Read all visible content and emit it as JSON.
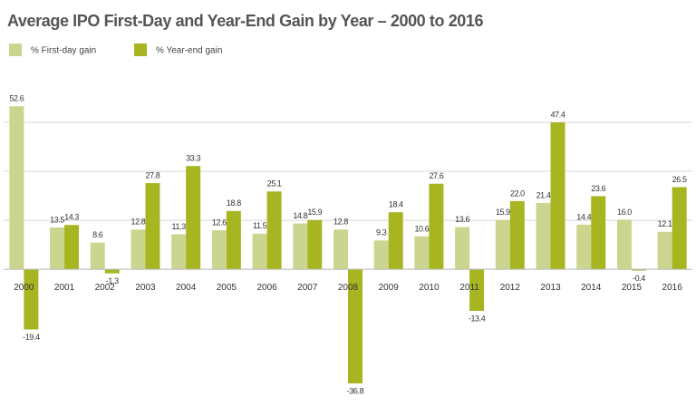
{
  "chart_data": {
    "type": "bar",
    "title": "Average IPO First-Day and Year-End Gain by Year – 2000 to 2016",
    "categories": [
      "2000",
      "2001",
      "2002",
      "2003",
      "2004",
      "2005",
      "2006",
      "2007",
      "2008",
      "2009",
      "2010",
      "2011",
      "2012",
      "2013",
      "2014",
      "2015",
      "2016"
    ],
    "series": [
      {
        "name": "% First-day gain",
        "color": "#cbd58f",
        "values": [
          52.6,
          13.5,
          8.6,
          12.8,
          11.3,
          12.6,
          11.5,
          14.8,
          12.8,
          9.3,
          10.6,
          13.6,
          15.9,
          21.4,
          14.4,
          16.0,
          12.1
        ],
        "value_labels": [
          "52.6",
          "13.5",
          "8.6",
          "12.8",
          "11.3",
          "12.6",
          "11.5",
          "14.8",
          "12.8",
          "9.3",
          "10.6",
          "13.6",
          "15.9",
          "21.4",
          "14.4",
          "16.0",
          "12.1"
        ]
      },
      {
        "name": "% Year-end gain",
        "color": "#a6b520",
        "values": [
          -19.4,
          14.3,
          -1.3,
          27.8,
          33.3,
          18.8,
          25.1,
          15.9,
          -36.8,
          18.4,
          27.6,
          -13.4,
          22.0,
          47.4,
          23.6,
          -0.4,
          26.5
        ],
        "value_labels": [
          "-19.4",
          "14.3",
          "-1.3",
          "27.8",
          "33.3",
          "18.8",
          "25.1",
          "15.9",
          "-36.8",
          "18.4",
          "27.6",
          "-13.4",
          "22.0",
          "47.4",
          "23.6",
          "-0.4",
          "26.5"
        ]
      }
    ],
    "ylim": [
      -40,
      55
    ],
    "yticks": [
      0,
      15.8,
      31.6,
      47.4
    ],
    "grid": true,
    "legend": "top-left"
  }
}
